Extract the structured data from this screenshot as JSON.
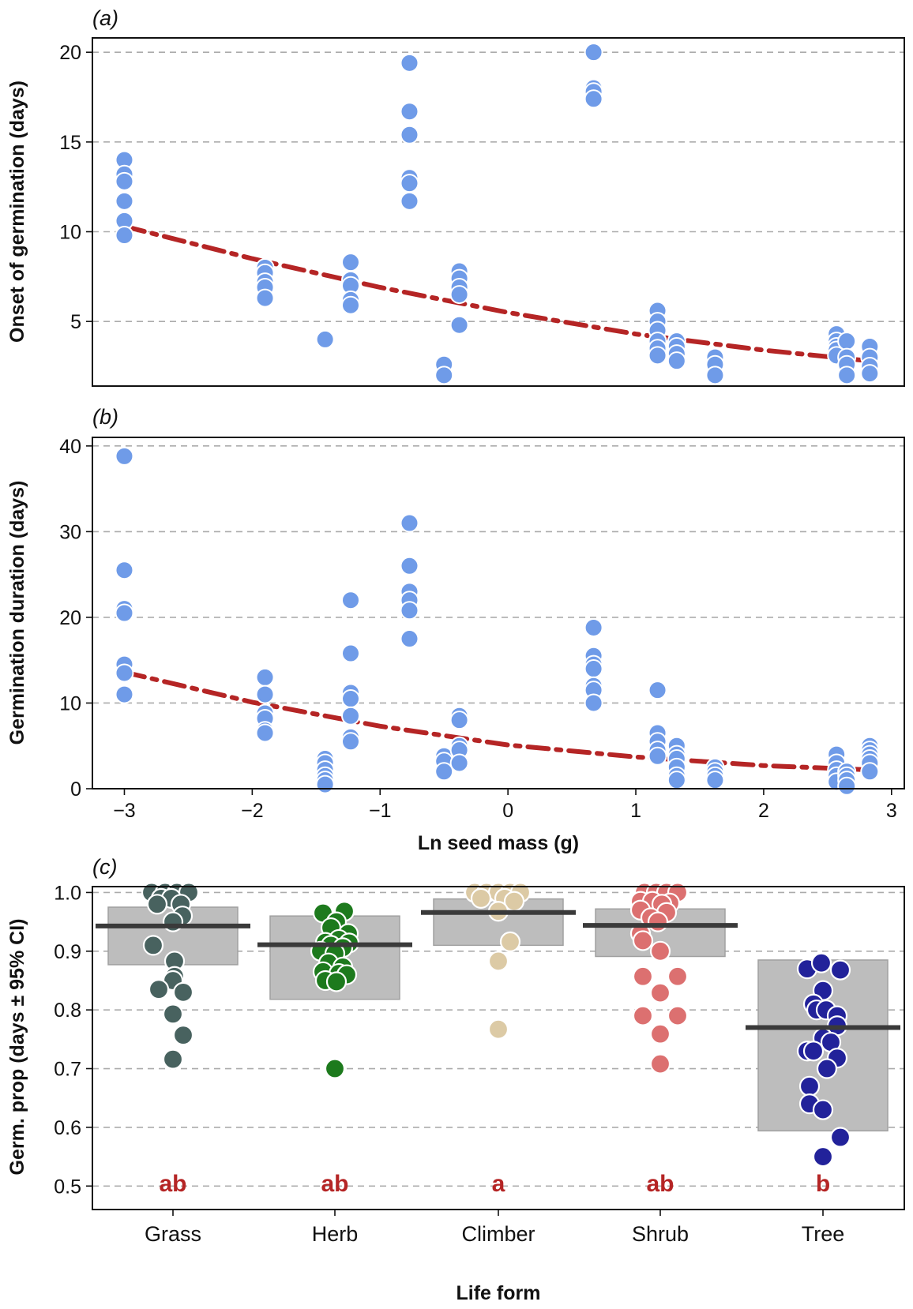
{
  "chart_data": [
    {
      "type": "scatter",
      "panel_label": "(a)",
      "xlabel": "",
      "ylabel": "Onset of germination (days)",
      "xlim": [
        -3.25,
        3.1
      ],
      "ylim": [
        1.4,
        20.8
      ],
      "yticks": [
        5,
        10,
        15,
        20
      ],
      "ytick_labels": [
        "5",
        "10",
        "15",
        "20"
      ],
      "grid": "horizontal dashed",
      "point_color": "#6f9be8",
      "fit_color": "#b52525",
      "points": [
        [
          -3,
          14
        ],
        [
          -3,
          13.2
        ],
        [
          -3,
          12.8
        ],
        [
          -3,
          11.7
        ],
        [
          -3,
          10.6
        ],
        [
          -3,
          9.8
        ],
        [
          -1.9,
          8
        ],
        [
          -1.9,
          7.7
        ],
        [
          -1.9,
          7.2
        ],
        [
          -1.9,
          6.9
        ],
        [
          -1.9,
          6.3
        ],
        [
          -1.43,
          4
        ],
        [
          -1.23,
          8.3
        ],
        [
          -1.23,
          7.3
        ],
        [
          -1.23,
          7
        ],
        [
          -1.23,
          6.2
        ],
        [
          -1.23,
          5.9
        ],
        [
          -0.77,
          19.4
        ],
        [
          -0.77,
          16.7
        ],
        [
          -0.77,
          15.4
        ],
        [
          -0.77,
          13
        ],
        [
          -0.77,
          12.7
        ],
        [
          -0.77,
          11.7
        ],
        [
          -0.5,
          2.6
        ],
        [
          -0.5,
          2
        ],
        [
          -0.38,
          7.8
        ],
        [
          -0.38,
          7.4
        ],
        [
          -0.38,
          6.9
        ],
        [
          -0.38,
          6.5
        ],
        [
          -0.38,
          4.8
        ],
        [
          0.67,
          20
        ],
        [
          0.67,
          18
        ],
        [
          0.67,
          17.8
        ],
        [
          0.67,
          17.4
        ],
        [
          1.17,
          5.6
        ],
        [
          1.17,
          5
        ],
        [
          1.17,
          4.5
        ],
        [
          1.17,
          3.9
        ],
        [
          1.17,
          3.5
        ],
        [
          1.17,
          3.1
        ],
        [
          1.32,
          3.9
        ],
        [
          1.32,
          3.6
        ],
        [
          1.32,
          3.2
        ],
        [
          1.32,
          2.8
        ],
        [
          1.62,
          3
        ],
        [
          1.62,
          2.6
        ],
        [
          1.62,
          2
        ],
        [
          2.57,
          4.3
        ],
        [
          2.57,
          3.9
        ],
        [
          2.57,
          3.6
        ],
        [
          2.57,
          3.4
        ],
        [
          2.57,
          3.1
        ],
        [
          2.65,
          3.9
        ],
        [
          2.65,
          3
        ],
        [
          2.65,
          2.6
        ],
        [
          2.65,
          2
        ],
        [
          2.83,
          3.6
        ],
        [
          2.83,
          3
        ],
        [
          2.83,
          2.5
        ],
        [
          2.83,
          2.1
        ]
      ],
      "fit_line": [
        [
          -3,
          10.3
        ],
        [
          -2,
          8.5
        ],
        [
          -1,
          6.9
        ],
        [
          0,
          5.5
        ],
        [
          1,
          4.3
        ],
        [
          2,
          3.4
        ],
        [
          2.83,
          2.8
        ]
      ]
    },
    {
      "type": "scatter",
      "panel_label": "(b)",
      "xlabel": "Ln seed mass (g)",
      "ylabel": "Germination duration (days)",
      "xlim": [
        -3.25,
        3.1
      ],
      "ylim": [
        0,
        41
      ],
      "xticks": [
        -3,
        -2,
        -1,
        0,
        1,
        2,
        3
      ],
      "xtick_labels": [
        "−3",
        "−2",
        "−1",
        "0",
        "1",
        "2",
        "3"
      ],
      "yticks": [
        0,
        10,
        20,
        30,
        40
      ],
      "ytick_labels": [
        "0",
        "10",
        "20",
        "30",
        "40"
      ],
      "grid": "horizontal dashed",
      "point_color": "#6f9be8",
      "fit_color": "#b52525",
      "points": [
        [
          -3,
          38.8
        ],
        [
          -3,
          25.5
        ],
        [
          -3,
          21
        ],
        [
          -3,
          20.5
        ],
        [
          -3,
          14.5
        ],
        [
          -3,
          13.5
        ],
        [
          -3,
          11
        ],
        [
          -1.9,
          13
        ],
        [
          -1.9,
          11
        ],
        [
          -1.9,
          8.8
        ],
        [
          -1.9,
          8.2
        ],
        [
          -1.9,
          6.8
        ],
        [
          -1.9,
          6.5
        ],
        [
          -1.43,
          3.5
        ],
        [
          -1.43,
          3
        ],
        [
          -1.43,
          2.2
        ],
        [
          -1.43,
          1.5
        ],
        [
          -1.43,
          1
        ],
        [
          -1.43,
          0.5
        ],
        [
          -1.23,
          22
        ],
        [
          -1.23,
          15.8
        ],
        [
          -1.23,
          11.2
        ],
        [
          -1.23,
          10.5
        ],
        [
          -1.23,
          8.5
        ],
        [
          -1.23,
          6
        ],
        [
          -1.23,
          5.5
        ],
        [
          -0.77,
          31
        ],
        [
          -0.77,
          26
        ],
        [
          -0.77,
          23
        ],
        [
          -0.77,
          22
        ],
        [
          -0.77,
          20.8
        ],
        [
          -0.77,
          17.5
        ],
        [
          -0.5,
          3.8
        ],
        [
          -0.5,
          3.2
        ],
        [
          -0.5,
          2
        ],
        [
          -0.38,
          8.5
        ],
        [
          -0.38,
          8
        ],
        [
          -0.38,
          5
        ],
        [
          -0.38,
          4.5
        ],
        [
          -0.38,
          3
        ],
        [
          0.67,
          18.8
        ],
        [
          0.67,
          15.5
        ],
        [
          0.67,
          14.5
        ],
        [
          0.67,
          14
        ],
        [
          0.67,
          12
        ],
        [
          0.67,
          11.5
        ],
        [
          0.67,
          10
        ],
        [
          1.17,
          11.5
        ],
        [
          1.17,
          6.5
        ],
        [
          1.17,
          5.5
        ],
        [
          1.17,
          4.5
        ],
        [
          1.17,
          3.8
        ],
        [
          1.32,
          5
        ],
        [
          1.32,
          4
        ],
        [
          1.32,
          3.5
        ],
        [
          1.32,
          2.5
        ],
        [
          1.32,
          1.5
        ],
        [
          1.32,
          1
        ],
        [
          1.62,
          2.5
        ],
        [
          1.62,
          2
        ],
        [
          1.62,
          1.5
        ],
        [
          1.62,
          1
        ],
        [
          2.57,
          4
        ],
        [
          2.57,
          3
        ],
        [
          2.57,
          2.2
        ],
        [
          2.57,
          1.5
        ],
        [
          2.57,
          0.8
        ],
        [
          2.65,
          2
        ],
        [
          2.65,
          1.5
        ],
        [
          2.65,
          1
        ],
        [
          2.65,
          0.3
        ],
        [
          2.83,
          5
        ],
        [
          2.83,
          4.5
        ],
        [
          2.83,
          4
        ],
        [
          2.83,
          3.5
        ],
        [
          2.83,
          3
        ],
        [
          2.83,
          2
        ]
      ],
      "fit_line": [
        [
          -3,
          13.6
        ],
        [
          -2,
          10.1
        ],
        [
          -1,
          7.3
        ],
        [
          0,
          5.1
        ],
        [
          1,
          3.7
        ],
        [
          2,
          2.7
        ],
        [
          2.83,
          2.2
        ]
      ]
    },
    {
      "type": "strip",
      "panel_label": "(c)",
      "xlabel": "Life form",
      "ylabel": "Germ. prop (days ± 95% CI)",
      "ylim": [
        0.46,
        1.01
      ],
      "yticks": [
        0.5,
        0.6,
        0.7,
        0.8,
        0.9,
        1.0
      ],
      "ytick_labels": [
        "0.5",
        "0.6",
        "0.7",
        "0.8",
        "0.9",
        "1.0"
      ],
      "grid": "horizontal dashed",
      "categories": [
        "Grass",
        "Herb",
        "Climber",
        "Shrub",
        "Tree"
      ],
      "letter_color": "#b52525",
      "groups": [
        {
          "name": "Grass",
          "color": "#48625f",
          "mean": 0.943,
          "ci": [
            0.877,
            0.975
          ],
          "letter": "ab",
          "points": [
            [
              -0.27,
              1.0
            ],
            [
              -0.1,
              1.0
            ],
            [
              0.05,
              1.0
            ],
            [
              0.2,
              1.0
            ],
            [
              -0.15,
              0.99
            ],
            [
              -0.02,
              0.99
            ],
            [
              -0.2,
              0.98
            ],
            [
              0.1,
              0.98
            ],
            [
              0.12,
              0.96
            ],
            [
              0.0,
              0.95
            ],
            [
              -0.25,
              0.91
            ],
            [
              0.02,
              0.883
            ],
            [
              0.02,
              0.857
            ],
            [
              0.0,
              0.85
            ],
            [
              -0.18,
              0.835
            ],
            [
              0.13,
              0.83
            ],
            [
              0.0,
              0.793
            ],
            [
              0.13,
              0.757
            ],
            [
              0.0,
              0.716
            ]
          ]
        },
        {
          "name": "Herb",
          "color": "#1d7a1d",
          "mean": 0.911,
          "ci": [
            0.818,
            0.96
          ],
          "letter": "ab",
          "points": [
            [
              -0.15,
              0.965
            ],
            [
              0.12,
              0.968
            ],
            [
              0.02,
              0.95
            ],
            [
              -0.05,
              0.94
            ],
            [
              0.17,
              0.93
            ],
            [
              0.05,
              0.92
            ],
            [
              -0.12,
              0.915
            ],
            [
              0.18,
              0.914
            ],
            [
              -0.05,
              0.91
            ],
            [
              0.1,
              0.906
            ],
            [
              -0.18,
              0.9
            ],
            [
              0.0,
              0.896
            ],
            [
              -0.08,
              0.88
            ],
            [
              0.1,
              0.873
            ],
            [
              -0.15,
              0.865
            ],
            [
              0.05,
              0.862
            ],
            [
              0.15,
              0.86
            ],
            [
              -0.12,
              0.85
            ],
            [
              0.02,
              0.848
            ],
            [
              0.0,
              0.7
            ]
          ]
        },
        {
          "name": "Climber",
          "color": "#dccaa5",
          "mean": 0.966,
          "ci": [
            0.91,
            0.989
          ],
          "letter": "a",
          "points": [
            [
              -0.3,
              1.0
            ],
            [
              -0.15,
              1.0
            ],
            [
              0.0,
              1.0
            ],
            [
              0.15,
              1.0
            ],
            [
              0.28,
              1.0
            ],
            [
              -0.22,
              0.99
            ],
            [
              0.08,
              0.99
            ],
            [
              0.2,
              0.985
            ],
            [
              0.0,
              0.968
            ],
            [
              0.15,
              0.916
            ],
            [
              0.0,
              0.883
            ],
            [
              0.0,
              0.767
            ]
          ]
        },
        {
          "name": "Shrub",
          "color": "#dc7070",
          "mean": 0.944,
          "ci": [
            0.891,
            0.972
          ],
          "letter": "ab",
          "points": [
            [
              -0.2,
              1.0
            ],
            [
              -0.05,
              1.0
            ],
            [
              0.08,
              1.0
            ],
            [
              0.22,
              1.0
            ],
            [
              -0.25,
              0.985
            ],
            [
              -0.1,
              0.985
            ],
            [
              0.12,
              0.982
            ],
            [
              0.02,
              0.98
            ],
            [
              -0.25,
              0.97
            ],
            [
              0.08,
              0.966
            ],
            [
              -0.12,
              0.957
            ],
            [
              -0.03,
              0.95
            ],
            [
              -0.25,
              0.93
            ],
            [
              -0.22,
              0.918
            ],
            [
              0.0,
              0.9
            ],
            [
              -0.22,
              0.857
            ],
            [
              0.22,
              0.857
            ],
            [
              0.0,
              0.829
            ],
            [
              -0.22,
              0.79
            ],
            [
              0.22,
              0.79
            ],
            [
              0.0,
              0.759
            ],
            [
              0.0,
              0.708
            ]
          ]
        },
        {
          "name": "Tree",
          "color": "#22229a",
          "mean": 0.77,
          "ci": [
            0.594,
            0.885
          ],
          "letter": "b",
          "points": [
            [
              -0.2,
              0.87
            ],
            [
              -0.02,
              0.88
            ],
            [
              0.22,
              0.868
            ],
            [
              0.0,
              0.833
            ],
            [
              -0.12,
              0.81
            ],
            [
              -0.08,
              0.8
            ],
            [
              0.04,
              0.8
            ],
            [
              0.18,
              0.79
            ],
            [
              0.18,
              0.773
            ],
            [
              0.0,
              0.752
            ],
            [
              0.1,
              0.745
            ],
            [
              -0.2,
              0.73
            ],
            [
              -0.12,
              0.73
            ],
            [
              0.18,
              0.718
            ],
            [
              0.05,
              0.7
            ],
            [
              -0.17,
              0.67
            ],
            [
              -0.17,
              0.64
            ],
            [
              0.0,
              0.63
            ],
            [
              0.22,
              0.583
            ],
            [
              0.0,
              0.55
            ]
          ]
        }
      ]
    }
  ]
}
